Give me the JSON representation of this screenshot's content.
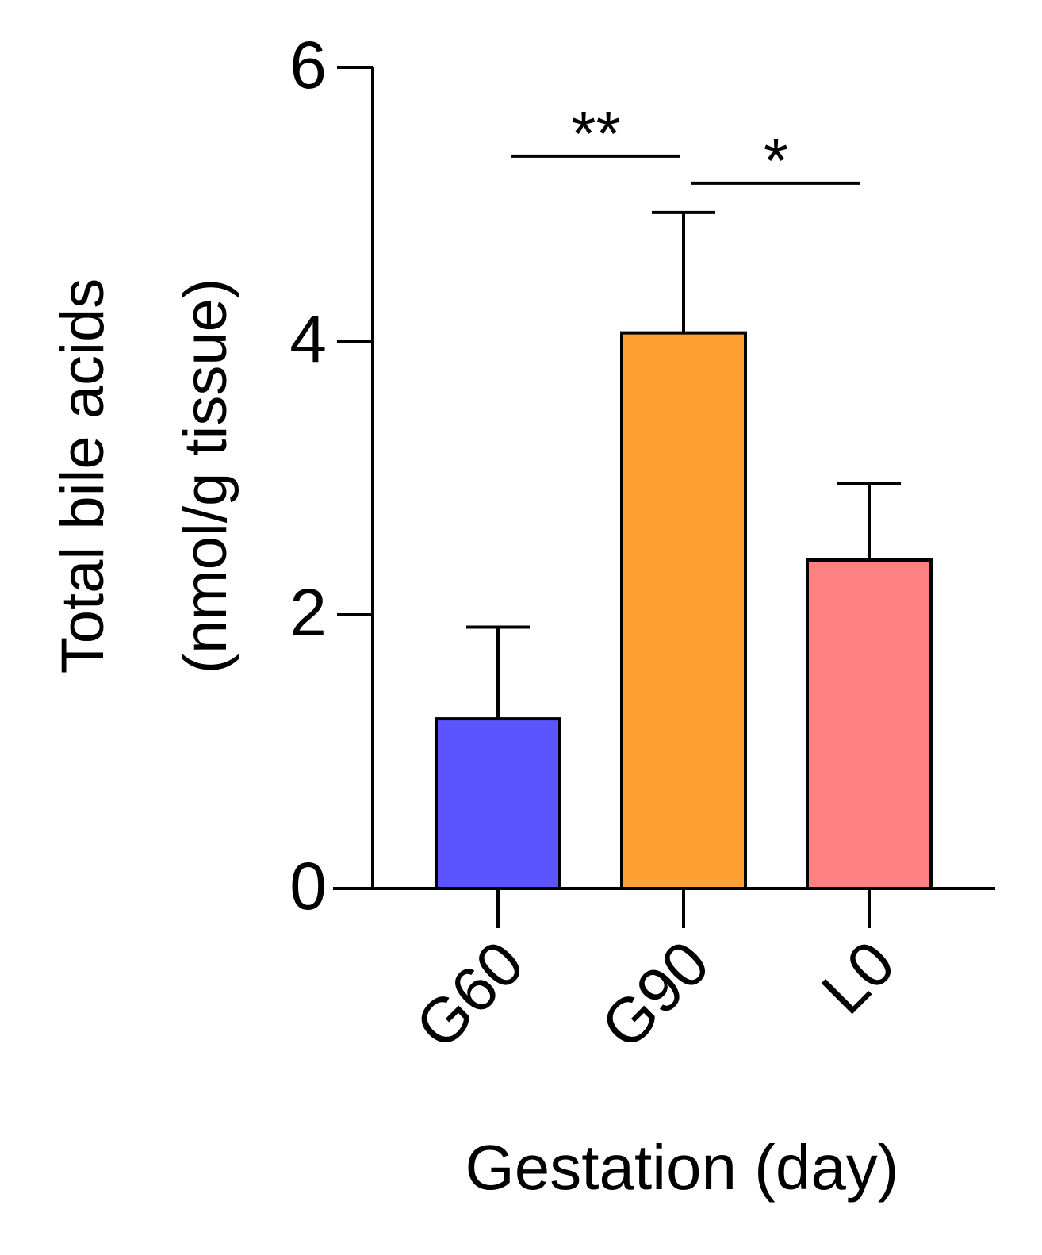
{
  "chart_data": {
    "type": "bar",
    "y_label": [
      "Total bile acids",
      "(nmol/g tissue)"
    ],
    "x_label": "Gestation (day)",
    "categories": [
      "G60",
      "G90",
      "L0"
    ],
    "values": [
      1.24,
      4.06,
      2.4
    ],
    "errors": [
      0.67,
      0.88,
      0.56
    ],
    "colors": [
      "#5a55ff",
      "#ffa030",
      "#ff8080"
    ],
    "ylim": [
      0,
      6
    ],
    "yticks": [
      0,
      2,
      4,
      6
    ],
    "annotations": [
      {
        "text": "**",
        "from": "G60",
        "to": "G90"
      },
      {
        "text": "*",
        "from": "G90",
        "to": "L0"
      }
    ]
  }
}
